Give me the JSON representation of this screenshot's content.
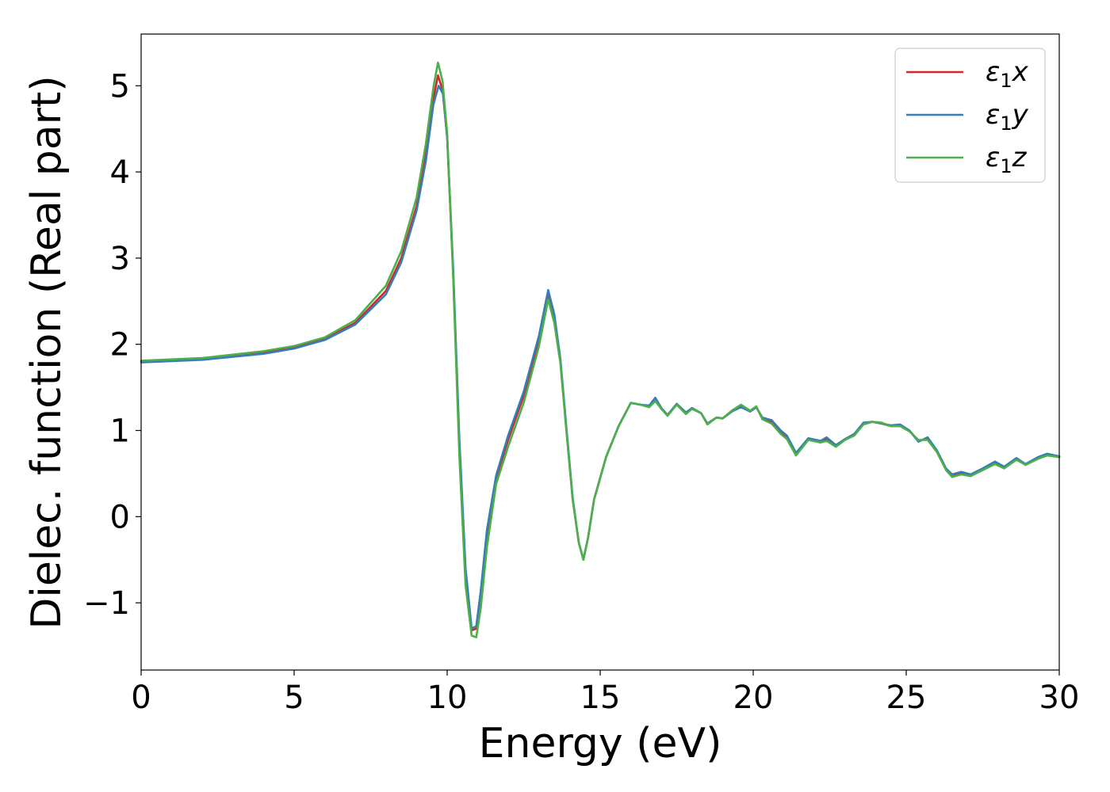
{
  "chart_data": {
    "type": "line",
    "xlabel": "Energy (eV)",
    "ylabel": "Dielec. function (Real part)",
    "xlim": [
      0,
      30
    ],
    "ylim": [
      -1.78,
      5.6
    ],
    "xticks": [
      0,
      5,
      10,
      15,
      20,
      25,
      30
    ],
    "xtick_labels": [
      "0",
      "5",
      "10",
      "15",
      "20",
      "25",
      "30"
    ],
    "yticks": [
      -1,
      0,
      1,
      2,
      3,
      4,
      5
    ],
    "ytick_labels": [
      "−1",
      "0",
      "1",
      "2",
      "3",
      "4",
      "5"
    ],
    "grid": false,
    "legend": {
      "position": "top-right"
    },
    "series": [
      {
        "name": "ε₁x",
        "legend_main": "ε",
        "legend_sub": "1",
        "legend_suffix": "x",
        "color": "#d62728",
        "points": [
          [
            0,
            1.8
          ],
          [
            2,
            1.83
          ],
          [
            4,
            1.9
          ],
          [
            5,
            1.96
          ],
          [
            6,
            2.06
          ],
          [
            7,
            2.25
          ],
          [
            8,
            2.62
          ],
          [
            8.5,
            3.0
          ],
          [
            9,
            3.6
          ],
          [
            9.3,
            4.2
          ],
          [
            9.55,
            4.85
          ],
          [
            9.7,
            5.12
          ],
          [
            9.85,
            4.95
          ],
          [
            10,
            4.4
          ],
          [
            10.2,
            2.8
          ],
          [
            10.4,
            0.8
          ],
          [
            10.6,
            -0.7
          ],
          [
            10.8,
            -1.32
          ],
          [
            10.95,
            -1.3
          ],
          [
            11.1,
            -0.9
          ],
          [
            11.3,
            -0.2
          ],
          [
            11.6,
            0.45
          ],
          [
            12,
            0.9
          ],
          [
            12.5,
            1.4
          ],
          [
            13,
            2.05
          ],
          [
            13.3,
            2.58
          ],
          [
            13.5,
            2.3
          ],
          [
            13.7,
            1.8
          ],
          [
            13.9,
            1.0
          ],
          [
            14.1,
            0.2
          ],
          [
            14.3,
            -0.3
          ],
          [
            14.45,
            -0.5
          ],
          [
            14.6,
            -0.25
          ],
          [
            14.8,
            0.2
          ],
          [
            15.2,
            0.7
          ],
          [
            15.6,
            1.05
          ],
          [
            16,
            1.32
          ],
          [
            16.3,
            1.3
          ],
          [
            16.6,
            1.28
          ],
          [
            16.8,
            1.36
          ],
          [
            17,
            1.25
          ],
          [
            17.2,
            1.18
          ],
          [
            17.5,
            1.3
          ],
          [
            17.8,
            1.2
          ],
          [
            18,
            1.26
          ],
          [
            18.3,
            1.2
          ],
          [
            18.5,
            1.08
          ],
          [
            18.8,
            1.15
          ],
          [
            19,
            1.14
          ],
          [
            19.3,
            1.22
          ],
          [
            19.6,
            1.28
          ],
          [
            19.9,
            1.22
          ],
          [
            20.1,
            1.27
          ],
          [
            20.3,
            1.14
          ],
          [
            20.6,
            1.1
          ],
          [
            20.9,
            0.98
          ],
          [
            21.1,
            0.92
          ],
          [
            21.4,
            0.72
          ],
          [
            21.8,
            0.9
          ],
          [
            22.2,
            0.87
          ],
          [
            22.4,
            0.9
          ],
          [
            22.7,
            0.82
          ],
          [
            23,
            0.9
          ],
          [
            23.3,
            0.95
          ],
          [
            23.6,
            1.08
          ],
          [
            23.9,
            1.1
          ],
          [
            24.2,
            1.08
          ],
          [
            24.5,
            1.05
          ],
          [
            24.8,
            1.06
          ],
          [
            25.1,
            1.0
          ],
          [
            25.4,
            0.88
          ],
          [
            25.7,
            0.9
          ],
          [
            26,
            0.76
          ],
          [
            26.3,
            0.55
          ],
          [
            26.5,
            0.47
          ],
          [
            26.8,
            0.5
          ],
          [
            27.1,
            0.48
          ],
          [
            27.5,
            0.55
          ],
          [
            27.9,
            0.62
          ],
          [
            28.2,
            0.57
          ],
          [
            28.6,
            0.67
          ],
          [
            28.9,
            0.6
          ],
          [
            29.3,
            0.68
          ],
          [
            29.6,
            0.72
          ],
          [
            30,
            0.69
          ]
        ]
      },
      {
        "name": "ε₁y",
        "legend_main": "ε",
        "legend_sub": "1",
        "legend_suffix": "y",
        "color": "#377eb8",
        "points": [
          [
            0,
            1.79
          ],
          [
            2,
            1.82
          ],
          [
            4,
            1.89
          ],
          [
            5,
            1.95
          ],
          [
            6,
            2.05
          ],
          [
            7,
            2.23
          ],
          [
            8,
            2.58
          ],
          [
            8.5,
            2.95
          ],
          [
            9,
            3.55
          ],
          [
            9.3,
            4.12
          ],
          [
            9.55,
            4.78
          ],
          [
            9.72,
            5.0
          ],
          [
            9.87,
            4.9
          ],
          [
            10,
            4.4
          ],
          [
            10.2,
            2.85
          ],
          [
            10.4,
            0.9
          ],
          [
            10.6,
            -0.6
          ],
          [
            10.8,
            -1.3
          ],
          [
            10.95,
            -1.27
          ],
          [
            11.1,
            -0.85
          ],
          [
            11.3,
            -0.15
          ],
          [
            11.6,
            0.48
          ],
          [
            12,
            0.95
          ],
          [
            12.5,
            1.45
          ],
          [
            13,
            2.1
          ],
          [
            13.3,
            2.63
          ],
          [
            13.5,
            2.35
          ],
          [
            13.7,
            1.83
          ],
          [
            13.9,
            1.02
          ],
          [
            14.1,
            0.22
          ],
          [
            14.3,
            -0.3
          ],
          [
            14.45,
            -0.5
          ],
          [
            14.6,
            -0.25
          ],
          [
            14.8,
            0.2
          ],
          [
            15.2,
            0.7
          ],
          [
            15.6,
            1.05
          ],
          [
            16,
            1.32
          ],
          [
            16.3,
            1.3
          ],
          [
            16.6,
            1.29
          ],
          [
            16.8,
            1.38
          ],
          [
            17,
            1.26
          ],
          [
            17.2,
            1.18
          ],
          [
            17.5,
            1.31
          ],
          [
            17.8,
            1.21
          ],
          [
            18,
            1.26
          ],
          [
            18.3,
            1.2
          ],
          [
            18.5,
            1.08
          ],
          [
            18.8,
            1.15
          ],
          [
            19,
            1.14
          ],
          [
            19.3,
            1.22
          ],
          [
            19.6,
            1.27
          ],
          [
            19.9,
            1.22
          ],
          [
            20.1,
            1.27
          ],
          [
            20.3,
            1.15
          ],
          [
            20.6,
            1.12
          ],
          [
            20.9,
            1.0
          ],
          [
            21.1,
            0.94
          ],
          [
            21.4,
            0.74
          ],
          [
            21.8,
            0.91
          ],
          [
            22.2,
            0.88
          ],
          [
            22.4,
            0.92
          ],
          [
            22.7,
            0.83
          ],
          [
            23,
            0.9
          ],
          [
            23.3,
            0.96
          ],
          [
            23.6,
            1.09
          ],
          [
            23.9,
            1.1
          ],
          [
            24.2,
            1.08
          ],
          [
            24.5,
            1.06
          ],
          [
            24.8,
            1.07
          ],
          [
            25.1,
            1.0
          ],
          [
            25.4,
            0.87
          ],
          [
            25.7,
            0.92
          ],
          [
            26,
            0.77
          ],
          [
            26.3,
            0.56
          ],
          [
            26.5,
            0.49
          ],
          [
            26.8,
            0.52
          ],
          [
            27.1,
            0.49
          ],
          [
            27.5,
            0.56
          ],
          [
            27.9,
            0.64
          ],
          [
            28.2,
            0.58
          ],
          [
            28.6,
            0.68
          ],
          [
            28.9,
            0.61
          ],
          [
            29.3,
            0.69
          ],
          [
            29.6,
            0.73
          ],
          [
            30,
            0.7
          ]
        ]
      },
      {
        "name": "ε₁z",
        "legend_main": "ε",
        "legend_sub": "1",
        "legend_suffix": "z",
        "color": "#4daf4a",
        "points": [
          [
            0,
            1.81
          ],
          [
            2,
            1.84
          ],
          [
            4,
            1.92
          ],
          [
            5,
            1.98
          ],
          [
            6,
            2.08
          ],
          [
            7,
            2.28
          ],
          [
            8,
            2.68
          ],
          [
            8.5,
            3.08
          ],
          [
            9,
            3.7
          ],
          [
            9.3,
            4.32
          ],
          [
            9.55,
            4.98
          ],
          [
            9.7,
            5.27
          ],
          [
            9.85,
            5.05
          ],
          [
            10,
            4.45
          ],
          [
            10.2,
            2.75
          ],
          [
            10.4,
            0.7
          ],
          [
            10.6,
            -0.8
          ],
          [
            10.8,
            -1.38
          ],
          [
            10.95,
            -1.4
          ],
          [
            11.1,
            -1.05
          ],
          [
            11.3,
            -0.35
          ],
          [
            11.6,
            0.38
          ],
          [
            12,
            0.82
          ],
          [
            12.5,
            1.32
          ],
          [
            13,
            1.98
          ],
          [
            13.3,
            2.52
          ],
          [
            13.5,
            2.25
          ],
          [
            13.7,
            1.78
          ],
          [
            13.9,
            0.98
          ],
          [
            14.1,
            0.2
          ],
          [
            14.3,
            -0.3
          ],
          [
            14.45,
            -0.5
          ],
          [
            14.6,
            -0.25
          ],
          [
            14.8,
            0.2
          ],
          [
            15.2,
            0.7
          ],
          [
            15.6,
            1.05
          ],
          [
            16,
            1.32
          ],
          [
            16.3,
            1.3
          ],
          [
            16.6,
            1.27
          ],
          [
            16.8,
            1.34
          ],
          [
            17,
            1.25
          ],
          [
            17.2,
            1.17
          ],
          [
            17.5,
            1.3
          ],
          [
            17.8,
            1.19
          ],
          [
            18,
            1.25
          ],
          [
            18.3,
            1.2
          ],
          [
            18.5,
            1.07
          ],
          [
            18.8,
            1.15
          ],
          [
            19,
            1.14
          ],
          [
            19.3,
            1.23
          ],
          [
            19.6,
            1.3
          ],
          [
            19.9,
            1.23
          ],
          [
            20.1,
            1.28
          ],
          [
            20.3,
            1.13
          ],
          [
            20.6,
            1.08
          ],
          [
            20.9,
            0.96
          ],
          [
            21.1,
            0.9
          ],
          [
            21.4,
            0.71
          ],
          [
            21.8,
            0.89
          ],
          [
            22.2,
            0.86
          ],
          [
            22.4,
            0.88
          ],
          [
            22.7,
            0.81
          ],
          [
            23,
            0.89
          ],
          [
            23.3,
            0.94
          ],
          [
            23.6,
            1.07
          ],
          [
            23.9,
            1.1
          ],
          [
            24.2,
            1.09
          ],
          [
            24.5,
            1.05
          ],
          [
            24.8,
            1.05
          ],
          [
            25.1,
            0.99
          ],
          [
            25.4,
            0.89
          ],
          [
            25.7,
            0.89
          ],
          [
            26,
            0.75
          ],
          [
            26.3,
            0.54
          ],
          [
            26.5,
            0.46
          ],
          [
            26.8,
            0.49
          ],
          [
            27.1,
            0.47
          ],
          [
            27.5,
            0.54
          ],
          [
            27.9,
            0.61
          ],
          [
            28.2,
            0.56
          ],
          [
            28.6,
            0.66
          ],
          [
            28.9,
            0.6
          ],
          [
            29.3,
            0.67
          ],
          [
            29.6,
            0.71
          ],
          [
            30,
            0.69
          ]
        ]
      }
    ]
  }
}
